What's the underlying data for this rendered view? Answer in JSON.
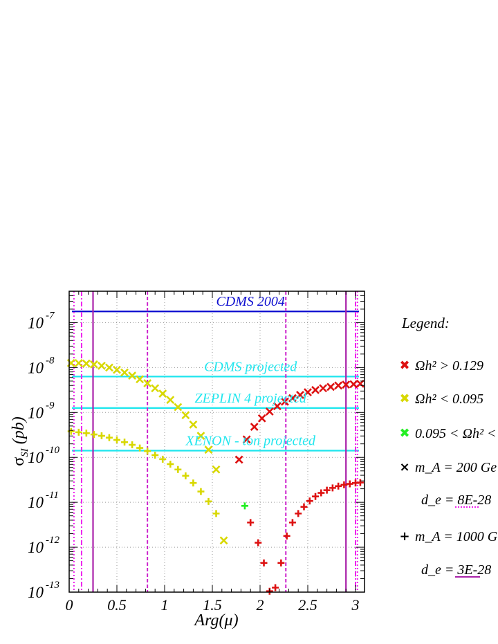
{
  "chart_data": {
    "type": "scatter",
    "xlabel": "Arg(μ)",
    "ylabel": "σ_SI (pb)",
    "xlim": [
      0,
      3.1
    ],
    "ylog": true,
    "ylim_exp": [
      -13,
      -6.3
    ],
    "grid": true,
    "x_ticks": [
      {
        "v": 0,
        "label": "0"
      },
      {
        "v": 0.5,
        "label": "0.5"
      },
      {
        "v": 1,
        "label": "1"
      },
      {
        "v": 1.5,
        "label": "1.5"
      },
      {
        "v": 2,
        "label": "2"
      },
      {
        "v": 2.5,
        "label": "2.5"
      },
      {
        "v": 3,
        "label": "3"
      }
    ],
    "y_ticks": [
      {
        "e": -7,
        "base": "10",
        "exp": "-7"
      },
      {
        "e": -8,
        "base": "10",
        "exp": "-8"
      },
      {
        "e": -9,
        "base": "10",
        "exp": "-9"
      },
      {
        "e": -10,
        "base": "10",
        "exp": "-10"
      },
      {
        "e": -11,
        "base": "10",
        "exp": "-11"
      },
      {
        "e": -12,
        "base": "10",
        "exp": "-12"
      },
      {
        "e": -13,
        "base": "10",
        "exp": "-13"
      }
    ],
    "reference_lines": [
      {
        "label": "CDMS 2004",
        "y_exp": -6.75,
        "color": "#1010d0",
        "label_x": 1.9
      },
      {
        "label": "CDMS projected",
        "y_exp": -8.2,
        "color": "#22e6ee",
        "label_x": 1.9
      },
      {
        "label": "ZEPLIN 4 projected",
        "y_exp": -8.9,
        "color": "#22e6ee",
        "label_x": 1.9
      },
      {
        "label": "XENON - ton projected",
        "y_exp": -9.85,
        "color": "#22e6ee",
        "label_x": 1.9
      }
    ],
    "vertical_lines": [
      {
        "x": 0.05,
        "color": "#ee22ee",
        "style": "dotted"
      },
      {
        "x": 0.13,
        "color": "#ee22ee",
        "style": "dashdot"
      },
      {
        "x": 0.25,
        "color": "#aa22aa",
        "style": "solid"
      },
      {
        "x": 0.82,
        "color": "#cc22cc",
        "style": "dashed"
      },
      {
        "x": 2.27,
        "color": "#cc22cc",
        "style": "dashed"
      },
      {
        "x": 2.9,
        "color": "#aa22aa",
        "style": "solid"
      },
      {
        "x": 3.0,
        "color": "#ee22ee",
        "style": "dashdot"
      },
      {
        "x": 3.02,
        "color": "#ee22ee",
        "style": "dotted"
      }
    ],
    "series": [
      {
        "marker": "x",
        "color": "#d8d800",
        "x": [
          0.02,
          0.1,
          0.18,
          0.26,
          0.34,
          0.42,
          0.5,
          0.58,
          0.66,
          0.74,
          0.82,
          0.9,
          0.98,
          1.06,
          1.14,
          1.22,
          1.3,
          1.38,
          1.46,
          1.54,
          1.62
        ],
        "y_exp": [
          -7.9,
          -7.9,
          -7.91,
          -7.93,
          -7.96,
          -8.0,
          -8.05,
          -8.11,
          -8.18,
          -8.26,
          -8.35,
          -8.46,
          -8.58,
          -8.72,
          -8.88,
          -9.06,
          -9.27,
          -9.52,
          -9.83,
          -10.27,
          -11.85
        ]
      },
      {
        "marker": "x",
        "color": "#dd1111",
        "x": [
          1.78,
          1.86,
          1.94,
          2.02,
          2.1,
          2.18,
          2.26,
          2.34,
          2.42,
          2.5,
          2.58,
          2.66,
          2.74,
          2.82,
          2.9,
          2.98,
          3.05
        ],
        "y_exp": [
          -10.05,
          -9.6,
          -9.32,
          -9.13,
          -8.98,
          -8.86,
          -8.76,
          -8.68,
          -8.61,
          -8.55,
          -8.5,
          -8.46,
          -8.43,
          -8.4,
          -8.38,
          -8.37,
          -8.36
        ]
      },
      {
        "marker": "+",
        "color": "#d8d800",
        "x": [
          0.02,
          0.1,
          0.18,
          0.26,
          0.34,
          0.42,
          0.5,
          0.58,
          0.66,
          0.74,
          0.82,
          0.9,
          0.98,
          1.06,
          1.14,
          1.22,
          1.3,
          1.38,
          1.46,
          1.54
        ],
        "y_exp": [
          -9.42,
          -9.44,
          -9.46,
          -9.49,
          -9.52,
          -9.56,
          -9.61,
          -9.66,
          -9.72,
          -9.79,
          -9.86,
          -9.95,
          -10.04,
          -10.15,
          -10.27,
          -10.41,
          -10.57,
          -10.76,
          -10.98,
          -11.25
        ]
      },
      {
        "marker": "+",
        "color": "#22ee22",
        "x": [
          1.84
        ],
        "y_exp": [
          -11.08
        ]
      },
      {
        "marker": "+",
        "color": "#dd1111",
        "x": [
          1.9,
          1.98,
          2.04,
          2.1,
          2.16,
          2.22,
          2.28,
          2.34,
          2.4,
          2.46,
          2.52,
          2.58,
          2.64,
          2.7,
          2.76,
          2.82,
          2.88,
          2.94,
          3.0,
          3.05
        ],
        "y_exp": [
          -11.45,
          -11.9,
          -12.35,
          -12.98,
          -12.9,
          -12.35,
          -11.75,
          -11.45,
          -11.25,
          -11.1,
          -10.97,
          -10.87,
          -10.79,
          -10.73,
          -10.68,
          -10.64,
          -10.61,
          -10.59,
          -10.57,
          -10.56
        ]
      }
    ],
    "legend": {
      "title": "Legend:",
      "items": [
        {
          "symbol": "✖",
          "color": "#dd1111",
          "text": "Ωh² > 0.129"
        },
        {
          "symbol": "✖",
          "color": "#d8d800",
          "text": "Ωh² < 0.095"
        },
        {
          "symbol": "✖",
          "color": "#22ee22",
          "text": "0.095 < Ωh² <"
        },
        {
          "symbol": "×",
          "color": "#000000",
          "text": "m_A = 200 Ge"
        },
        {
          "symbol": "",
          "color": "#000000",
          "text": "d_e =  8E-28",
          "swatch": "#ee22ee",
          "swatch_style": "dotted"
        },
        {
          "symbol": "+",
          "color": "#000000",
          "text": "m_A = 1000 G"
        },
        {
          "symbol": "",
          "color": "#000000",
          "text": "d_e =  3E-28",
          "swatch": "#aa22aa",
          "swatch_style": "solid"
        }
      ]
    }
  }
}
